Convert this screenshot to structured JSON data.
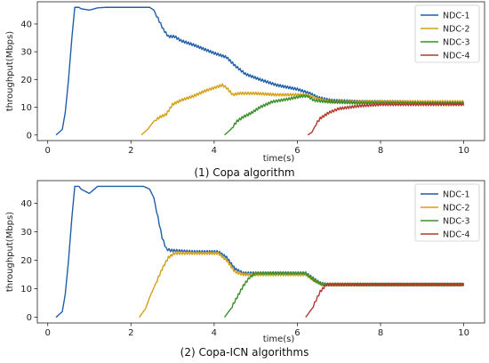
{
  "chart_data": [
    {
      "type": "line",
      "caption": "(1) Copa algorithm",
      "xlabel": "time(s)",
      "ylabel": "throughput(Mbps)",
      "xlim": [
        -0.25,
        10.5
      ],
      "ylim": [
        -2,
        48
      ],
      "xticks": [
        0,
        2,
        4,
        6,
        8,
        10
      ],
      "yticks": [
        0,
        10,
        20,
        30,
        40
      ],
      "legend_position": "top-right",
      "series": [
        {
          "name": "NDC-1",
          "color": "#1f5fa8",
          "points": [
            [
              0.2,
              0
            ],
            [
              0.35,
              2
            ],
            [
              0.42,
              8
            ],
            [
              0.5,
              20
            ],
            [
              0.58,
              35
            ],
            [
              0.65,
              46
            ],
            [
              0.75,
              46
            ],
            [
              0.8,
              45.5
            ],
            [
              1.0,
              45
            ],
            [
              1.2,
              45.8
            ],
            [
              1.4,
              46
            ],
            [
              2.3,
              46
            ],
            [
              2.45,
              46
            ],
            [
              2.55,
              45
            ],
            [
              2.65,
              42
            ],
            [
              2.78,
              38
            ],
            [
              2.9,
              35.5
            ],
            [
              3.05,
              35.5
            ],
            [
              3.2,
              34
            ],
            [
              3.5,
              32.5
            ],
            [
              4.0,
              29.5
            ],
            [
              4.3,
              28
            ],
            [
              4.5,
              25
            ],
            [
              4.75,
              22
            ],
            [
              5.1,
              20
            ],
            [
              5.5,
              18
            ],
            [
              6.0,
              16.5
            ],
            [
              6.3,
              15
            ],
            [
              6.5,
              13.5
            ],
            [
              6.8,
              12.5
            ],
            [
              7.5,
              12
            ],
            [
              8.5,
              12
            ],
            [
              10,
              11.5
            ]
          ]
        },
        {
          "name": "NDC-2",
          "color": "#d4a017",
          "points": [
            [
              2.25,
              0
            ],
            [
              2.4,
              2
            ],
            [
              2.55,
              5
            ],
            [
              2.7,
              6.5
            ],
            [
              2.85,
              7.5
            ],
            [
              3.0,
              11
            ],
            [
              3.2,
              12.5
            ],
            [
              3.5,
              14
            ],
            [
              3.8,
              16
            ],
            [
              4.2,
              18
            ],
            [
              4.3,
              17
            ],
            [
              4.45,
              14.5
            ],
            [
              4.6,
              15
            ],
            [
              5.0,
              15
            ],
            [
              5.5,
              14.5
            ],
            [
              6.2,
              14.5
            ],
            [
              6.5,
              13
            ],
            [
              6.8,
              12
            ],
            [
              8,
              12
            ],
            [
              10,
              12
            ]
          ]
        },
        {
          "name": "NDC-3",
          "color": "#3a8e2a",
          "points": [
            [
              4.25,
              0
            ],
            [
              4.4,
              2
            ],
            [
              4.55,
              5
            ],
            [
              4.7,
              6.5
            ],
            [
              4.9,
              8
            ],
            [
              5.1,
              10
            ],
            [
              5.4,
              12
            ],
            [
              5.8,
              13
            ],
            [
              6.1,
              14
            ],
            [
              6.25,
              14
            ],
            [
              6.4,
              12.5
            ],
            [
              6.7,
              12
            ],
            [
              7.5,
              11.5
            ],
            [
              10,
              11.5
            ]
          ]
        },
        {
          "name": "NDC-4",
          "color": "#b03a2e",
          "points": [
            [
              6.25,
              0
            ],
            [
              6.35,
              1
            ],
            [
              6.45,
              4
            ],
            [
              6.55,
              6
            ],
            [
              6.75,
              8
            ],
            [
              7.0,
              9.5
            ],
            [
              7.5,
              10.5
            ],
            [
              8.0,
              11
            ],
            [
              9.0,
              11
            ],
            [
              10,
              11
            ]
          ]
        }
      ]
    },
    {
      "type": "line",
      "caption": "(2) Copa-ICN algorithms",
      "xlabel": "time(s)",
      "ylabel": "throughput(Mbps)",
      "xlim": [
        -0.25,
        10.5
      ],
      "ylim": [
        -2,
        48
      ],
      "xticks": [
        0,
        2,
        4,
        6,
        8,
        10
      ],
      "yticks": [
        0,
        10,
        20,
        30,
        40
      ],
      "legend_position": "top-right",
      "series": [
        {
          "name": "NDC-1",
          "color": "#1f5fa8",
          "points": [
            [
              0.2,
              0
            ],
            [
              0.35,
              2
            ],
            [
              0.42,
              8
            ],
            [
              0.5,
              20
            ],
            [
              0.58,
              35
            ],
            [
              0.65,
              46
            ],
            [
              0.75,
              46
            ],
            [
              0.8,
              45
            ],
            [
              1.0,
              43.5
            ],
            [
              1.2,
              46
            ],
            [
              1.4,
              46
            ],
            [
              2.3,
              46
            ],
            [
              2.45,
              45
            ],
            [
              2.55,
              42
            ],
            [
              2.65,
              35
            ],
            [
              2.75,
              28
            ],
            [
              2.85,
              24
            ],
            [
              2.95,
              23.5
            ],
            [
              3.5,
              23
            ],
            [
              4.1,
              23
            ],
            [
              4.3,
              21
            ],
            [
              4.5,
              17
            ],
            [
              4.7,
              15.5
            ],
            [
              5.0,
              15.5
            ],
            [
              6.2,
              15.5
            ],
            [
              6.35,
              14
            ],
            [
              6.55,
              12
            ],
            [
              6.7,
              11.5
            ],
            [
              8,
              11.5
            ],
            [
              10,
              11.5
            ]
          ]
        },
        {
          "name": "NDC-2",
          "color": "#d4a017",
          "points": [
            [
              2.2,
              0
            ],
            [
              2.35,
              3
            ],
            [
              2.45,
              7
            ],
            [
              2.6,
              12
            ],
            [
              2.75,
              17
            ],
            [
              2.9,
              21
            ],
            [
              3.05,
              22.5
            ],
            [
              3.5,
              22.5
            ],
            [
              4.1,
              22.5
            ],
            [
              4.3,
              20
            ],
            [
              4.5,
              16
            ],
            [
              4.7,
              15
            ],
            [
              5.0,
              15
            ],
            [
              6.2,
              15
            ],
            [
              6.4,
              13
            ],
            [
              6.6,
              11.5
            ],
            [
              8,
              11.5
            ],
            [
              10,
              11.5
            ]
          ]
        },
        {
          "name": "NDC-3",
          "color": "#3a8e2a",
          "points": [
            [
              4.25,
              0
            ],
            [
              4.4,
              3
            ],
            [
              4.55,
              7
            ],
            [
              4.7,
              11
            ],
            [
              4.85,
              14
            ],
            [
              5.0,
              15.5
            ],
            [
              5.5,
              15.5
            ],
            [
              6.2,
              15.5
            ],
            [
              6.4,
              13
            ],
            [
              6.6,
              11.5
            ],
            [
              8,
              11.5
            ],
            [
              10,
              11.5
            ]
          ]
        },
        {
          "name": "NDC-4",
          "color": "#b03a2e",
          "points": [
            [
              6.2,
              0
            ],
            [
              6.35,
              3
            ],
            [
              6.45,
              6
            ],
            [
              6.55,
              9
            ],
            [
              6.7,
              11.5
            ],
            [
              8,
              11.5
            ],
            [
              10,
              11.5
            ]
          ]
        }
      ]
    }
  ]
}
